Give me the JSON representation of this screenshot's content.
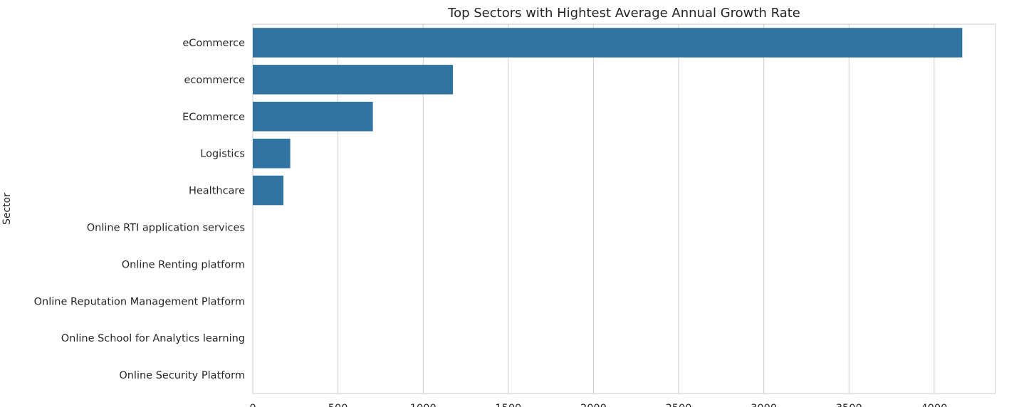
{
  "chart_data": {
    "type": "bar",
    "orientation": "horizontal",
    "title": "Top Sectors with Hightest Average Annual Growth Rate",
    "xlabel": "",
    "ylabel": "Sector",
    "categories": [
      "eCommerce",
      "ecommerce",
      "ECommerce",
      "Logistics",
      "Healthcare",
      "Online RTI application services",
      "Online Renting platform",
      "Online Reputation Management Platform",
      "Online School for Analytics learning",
      "Online Security Platform"
    ],
    "values": [
      4165,
      1175,
      705,
      220,
      180,
      0,
      0,
      0,
      0,
      0
    ],
    "xlim": [
      0,
      4360
    ],
    "xticks": [
      0,
      500,
      1000,
      1500,
      2000,
      2500,
      3000,
      3500,
      4000
    ],
    "grid": "x",
    "bar_color": "#3274a1",
    "grid_color": "#cccccc",
    "text_color": "#262626"
  }
}
